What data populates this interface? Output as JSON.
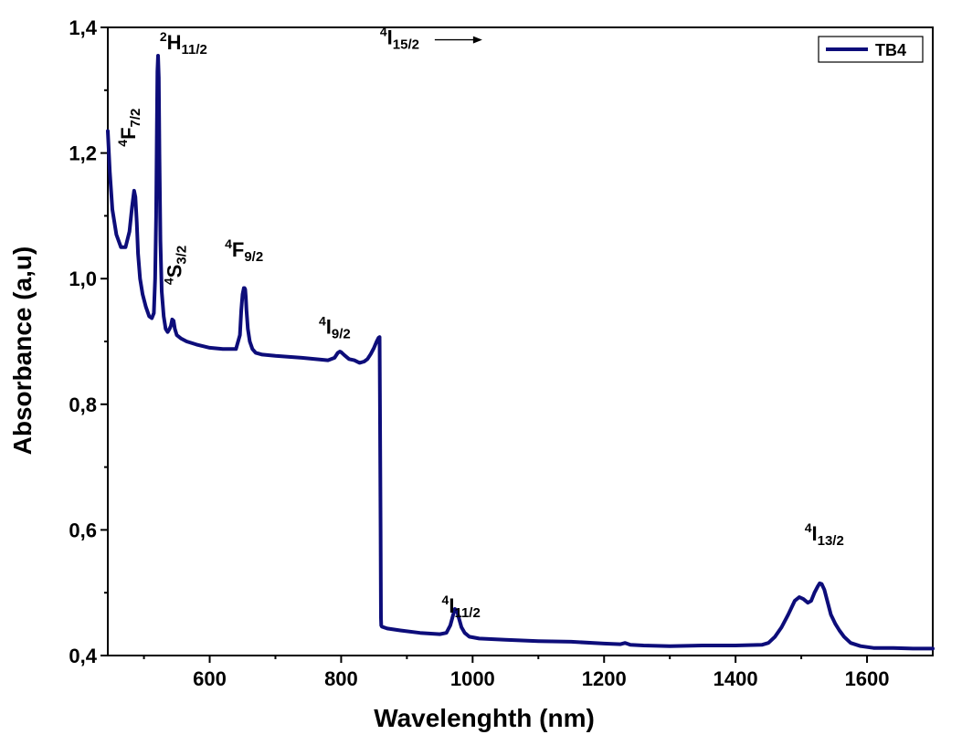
{
  "chart_data": {
    "type": "line",
    "title": "",
    "xlabel": "Wavelenghth (nm)",
    "ylabel": "Absorbance (a,u)",
    "xlim": [
      445,
      1700
    ],
    "ylim": [
      0.4,
      1.4
    ],
    "x_ticks": [
      600,
      800,
      1000,
      1200,
      1400,
      1600
    ],
    "y_ticks": [
      0.4,
      0.6,
      0.8,
      1.0,
      1.2,
      1.4
    ],
    "x_tick_labels": [
      "600",
      "800",
      "1000",
      "1200",
      "1400",
      "1600"
    ],
    "y_tick_labels": [
      "0,4",
      "0,6",
      "0,8",
      "1,0",
      "1,2",
      "1,4"
    ],
    "legend": {
      "position": "top-right",
      "entries": [
        "TB4"
      ]
    },
    "series": [
      {
        "name": "TB4",
        "color": "#0d0d7a",
        "x": [
          445,
          448,
          452,
          458,
          465,
          472,
          478,
          482,
          485,
          487,
          489,
          491,
          494,
          498,
          503,
          508,
          512,
          515,
          517,
          518.5,
          519.5,
          520.5,
          521.5,
          522.5,
          523.5,
          525,
          527,
          530,
          533,
          536,
          539,
          541,
          543,
          545,
          547,
          550,
          556,
          565,
          580,
          600,
          620,
          640,
          646,
          648,
          650,
          652,
          653,
          654,
          655,
          656,
          658,
          661,
          665,
          670,
          680,
          700,
          740,
          780,
          790,
          795,
          798,
          800,
          805,
          812,
          820,
          828,
          835,
          840,
          845,
          850,
          854,
          857,
          858.5,
          859,
          860,
          860.5,
          861,
          862,
          870,
          890,
          920,
          950,
          960,
          966,
          970,
          973,
          976,
          979,
          983,
          988,
          995,
          1010,
          1050,
          1100,
          1150,
          1200,
          1225,
          1232,
          1240,
          1260,
          1300,
          1350,
          1400,
          1440,
          1450,
          1460,
          1470,
          1480,
          1490,
          1497,
          1503,
          1510,
          1515,
          1520,
          1525,
          1528,
          1531,
          1535,
          1540,
          1545,
          1552,
          1558,
          1565,
          1575,
          1590,
          1610,
          1640,
          1670,
          1700
        ],
        "y": [
          1.235,
          1.17,
          1.11,
          1.07,
          1.05,
          1.05,
          1.075,
          1.115,
          1.14,
          1.13,
          1.09,
          1.04,
          1.0,
          0.975,
          0.955,
          0.94,
          0.937,
          0.945,
          1.0,
          1.1,
          1.22,
          1.33,
          1.355,
          1.32,
          1.2,
          1.06,
          0.98,
          0.94,
          0.92,
          0.915,
          0.92,
          0.925,
          0.935,
          0.933,
          0.92,
          0.91,
          0.905,
          0.9,
          0.895,
          0.89,
          0.888,
          0.888,
          0.91,
          0.95,
          0.975,
          0.985,
          0.985,
          0.983,
          0.97,
          0.95,
          0.92,
          0.9,
          0.888,
          0.882,
          0.879,
          0.877,
          0.874,
          0.87,
          0.874,
          0.882,
          0.884,
          0.883,
          0.878,
          0.872,
          0.87,
          0.866,
          0.868,
          0.872,
          0.88,
          0.89,
          0.9,
          0.906,
          0.907,
          0.8,
          0.6,
          0.46,
          0.448,
          0.446,
          0.443,
          0.44,
          0.436,
          0.434,
          0.436,
          0.448,
          0.463,
          0.474,
          0.472,
          0.46,
          0.445,
          0.436,
          0.43,
          0.427,
          0.425,
          0.423,
          0.422,
          0.419,
          0.418,
          0.42,
          0.417,
          0.416,
          0.415,
          0.416,
          0.416,
          0.417,
          0.42,
          0.43,
          0.445,
          0.465,
          0.487,
          0.493,
          0.49,
          0.484,
          0.487,
          0.5,
          0.51,
          0.515,
          0.514,
          0.505,
          0.485,
          0.465,
          0.45,
          0.44,
          0.43,
          0.42,
          0.415,
          0.412,
          0.412,
          0.411,
          0.411
        ]
      }
    ],
    "annotations": [
      {
        "id": "4F7/2",
        "sup": "4",
        "base": "F",
        "sub": "7/2",
        "x": 487,
        "y": 1.21,
        "rotate": -90
      },
      {
        "id": "2H11/2",
        "sup": "2",
        "base": "H",
        "sub": "11/2",
        "x": 524,
        "y": 1.365,
        "rotate": 0
      },
      {
        "id": "4S3/2",
        "sup": "4",
        "base": "S",
        "sub": "3/2",
        "x": 557,
        "y": 0.99,
        "rotate": -90
      },
      {
        "id": "4F9/2",
        "sup": "4",
        "base": "F",
        "sub": "9/2",
        "x": 623,
        "y": 1.035,
        "rotate": 0
      },
      {
        "id": "4I9/2",
        "sup": "4",
        "base": "I",
        "sub": "9/2",
        "x": 766,
        "y": 0.912,
        "rotate": 0
      },
      {
        "id": "4I11/2",
        "sup": "4",
        "base": "I",
        "sub": "11/2",
        "x": 953,
        "y": 0.468,
        "rotate": 0
      },
      {
        "id": "4I13/2",
        "sup": "4",
        "base": "I",
        "sub": "13/2",
        "x": 1505,
        "y": 0.583,
        "rotate": 0
      },
      {
        "id": "4I15/2",
        "sup": "4",
        "base": "I",
        "sub": "15/2",
        "x": 859,
        "y": 1.373,
        "rotate": 0,
        "arrow": true
      }
    ]
  }
}
